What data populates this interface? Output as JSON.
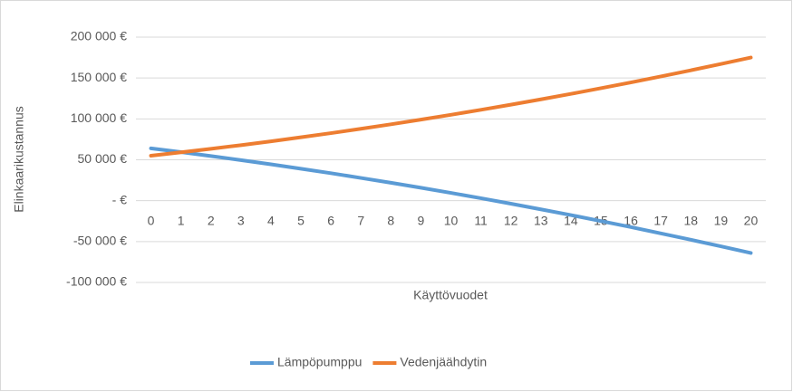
{
  "chart_data": {
    "type": "line",
    "y_label": "Elinkaarikustannus",
    "x_label": "Käyttövuodet",
    "categories": [
      "0",
      "1",
      "2",
      "3",
      "4",
      "5",
      "6",
      "7",
      "8",
      "9",
      "10",
      "11",
      "12",
      "13",
      "14",
      "15",
      "16",
      "17",
      "18",
      "19",
      "20"
    ],
    "series": [
      {
        "name": "Lämpöpumppu",
        "color": "#5b9bd5",
        "values": [
          64000,
          59400,
          54600,
          49600,
          44500,
          39100,
          33600,
          27800,
          21900,
          15800,
          9500,
          3000,
          -3700,
          -10600,
          -17600,
          -24900,
          -32300,
          -40000,
          -47800,
          -55800,
          -64000
        ]
      },
      {
        "name": "Vedenjäähdytin",
        "color": "#ed7d31",
        "values": [
          55000,
          59100,
          63400,
          67900,
          72600,
          77500,
          82600,
          87900,
          93400,
          99100,
          105000,
          111100,
          117400,
          123900,
          130600,
          137500,
          144600,
          151900,
          159400,
          167100,
          175000
        ]
      }
    ],
    "ylim": [
      -100000,
      200000
    ],
    "yticks": [
      {
        "value": -100000,
        "label": "-100 000 €"
      },
      {
        "value": -50000,
        "label": "-50 000 €"
      },
      {
        "value": 0,
        "label": "-   €"
      },
      {
        "value": 50000,
        "label": "50 000 €"
      },
      {
        "value": 100000,
        "label": "100 000 €"
      },
      {
        "value": 150000,
        "label": "150 000 €"
      },
      {
        "value": 200000,
        "label": "200 000 €"
      }
    ],
    "grid": true,
    "legend": "bottom"
  }
}
